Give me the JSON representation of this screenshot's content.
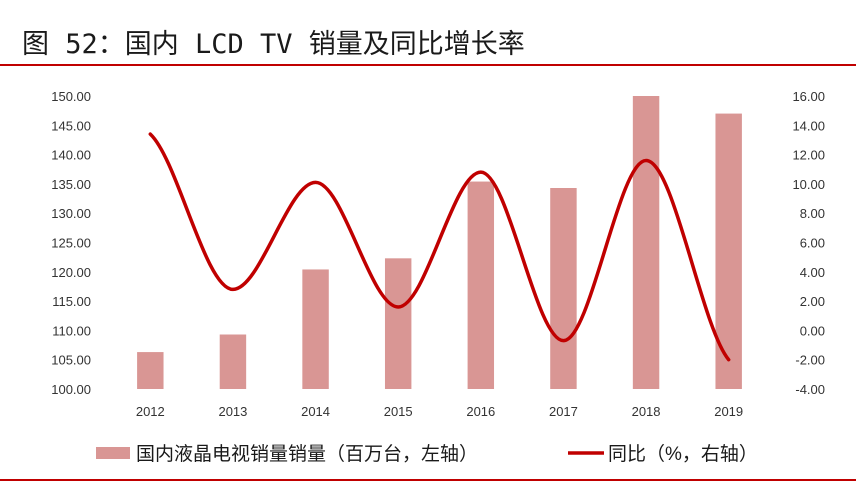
{
  "title": "图 52：国内 LCD TV 销量及同比增长率",
  "colors": {
    "bar": "#d99694",
    "line": "#c00000",
    "accent": "#c00000"
  },
  "chart_data": {
    "type": "bar",
    "categories": [
      "2012",
      "2013",
      "2014",
      "2015",
      "2016",
      "2017",
      "2018",
      "2019"
    ],
    "series": [
      {
        "name": "国内液晶电视销量销量（百万台，左轴）",
        "type": "bar",
        "axis": "left",
        "values": [
          106.3,
          109.3,
          120.4,
          122.3,
          135.4,
          134.3,
          150.0,
          147.0
        ]
      },
      {
        "name": "同比（%，右轴）",
        "type": "line",
        "axis": "right",
        "smooth": true,
        "values": [
          13.4,
          2.8,
          10.1,
          1.6,
          10.8,
          -0.7,
          11.6,
          -2.0
        ]
      }
    ],
    "y_left": {
      "min": 100,
      "max": 150,
      "step": 5,
      "tick_labels": [
        "100.00",
        "105.00",
        "110.00",
        "115.00",
        "120.00",
        "125.00",
        "130.00",
        "135.00",
        "140.00",
        "145.00",
        "150.00"
      ]
    },
    "y_right": {
      "min": -4,
      "max": 16,
      "step": 2,
      "tick_labels": [
        "-4.00",
        "-2.00",
        "0.00",
        "2.00",
        "4.00",
        "6.00",
        "8.00",
        "10.00",
        "12.00",
        "14.00",
        "16.00"
      ]
    },
    "grid": false,
    "legend_position": "bottom"
  }
}
